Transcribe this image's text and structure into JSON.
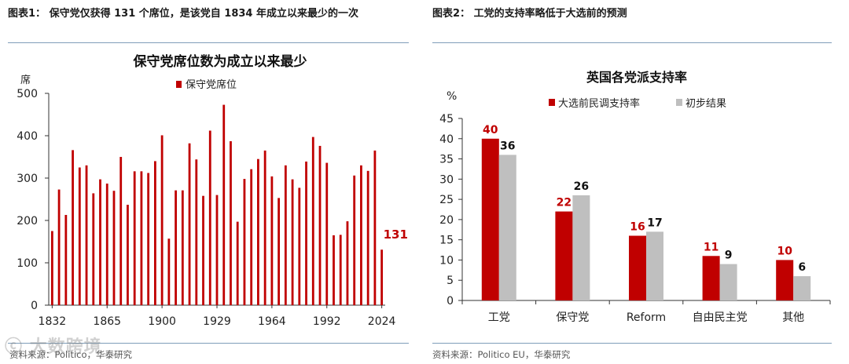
{
  "left": {
    "figure_title": "图表1： 保守党仅获得 131 个席位，是该党自 1834 年成立以来最少的一次",
    "source": "资料来源：Politico，华泰研究",
    "chart_data": {
      "type": "bar",
      "title": "保守党席位数为成立以来最少",
      "ylabel": "席",
      "ylim": [
        0,
        500
      ],
      "yticks": [
        0,
        100,
        200,
        300,
        400,
        500
      ],
      "xticks": [
        "1832",
        "1865",
        "1900",
        "1929",
        "1964",
        "1992",
        "2024"
      ],
      "legend": [
        "保守党席位"
      ],
      "colors": {
        "bar": "#c00000",
        "label": "#c00000"
      },
      "series": [
        {
          "name": "保守党席位",
          "values": [
            175,
            273,
            213,
            366,
            325,
            330,
            264,
            297,
            287,
            270,
            350,
            237,
            316,
            316,
            312,
            340,
            401,
            157,
            271,
            271,
            382,
            344,
            258,
            412,
            260,
            473,
            387,
            197,
            298,
            321,
            345,
            365,
            304,
            253,
            330,
            297,
            277,
            339,
            397,
            376,
            336,
            165,
            166,
            198,
            306,
            330,
            317,
            365,
            131
          ]
        }
      ],
      "annotation": "131"
    }
  },
  "right": {
    "figure_title": "图表2： 工党的支持率略低于大选前的预测",
    "source": "资料来源：Politico EU，华泰研究",
    "chart_data": {
      "type": "bar",
      "title": "英国各党派支持率",
      "ylabel": "%",
      "ylim": [
        0,
        45
      ],
      "yticks": [
        0,
        5,
        10,
        15,
        20,
        25,
        30,
        35,
        40,
        45
      ],
      "categories": [
        "工党",
        "保守党",
        "Reform",
        "自由民主党",
        "其他"
      ],
      "series": [
        {
          "name": "大选前民调支持率",
          "values": [
            40,
            22,
            16,
            11,
            10
          ],
          "color": "#c00000"
        },
        {
          "name": "初步结果",
          "values": [
            36,
            26,
            17,
            9,
            6
          ],
          "color": "#bfbfbf"
        }
      ],
      "label_colors": [
        "#c00000",
        "#111111"
      ]
    }
  },
  "watermark": "ⓒ 大数跨境"
}
